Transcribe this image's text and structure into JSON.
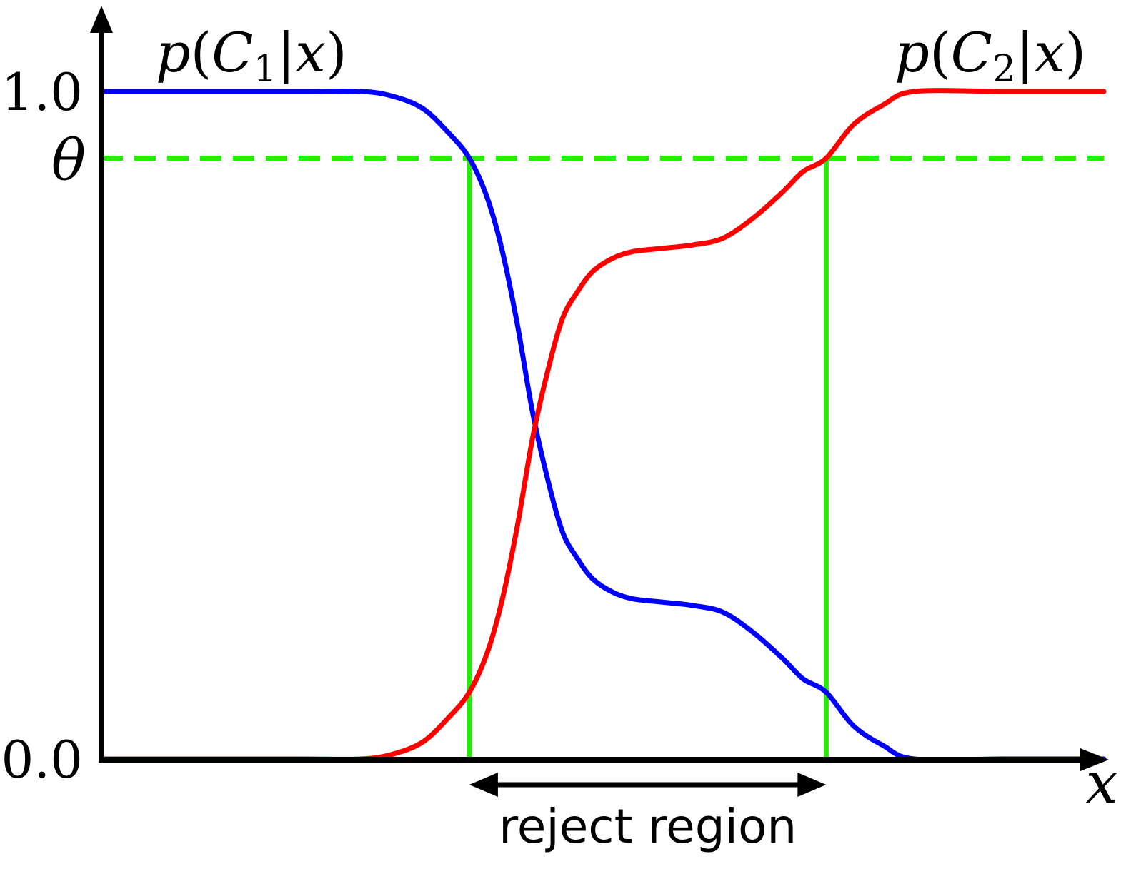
{
  "chart_data": {
    "type": "line",
    "title": "",
    "xlabel": "x",
    "ylabel": "",
    "xlim": [
      0,
      1
    ],
    "ylim": [
      0,
      1
    ],
    "yticks": [
      {
        "value": 1.0,
        "label": "1.0"
      },
      {
        "value": 0.0,
        "label": "0.0"
      }
    ],
    "threshold": {
      "value": 0.9,
      "label": "θ",
      "color": "#22ee00",
      "style": "dashed"
    },
    "reject_region": {
      "x_start": 0.367,
      "x_end": 0.723,
      "label": "reject region",
      "color": "#22ee00"
    },
    "grid": false,
    "series": [
      {
        "name": "p(C₁|x)",
        "label_parts": {
          "prefix": "p(",
          "var": "C",
          "sub": "1",
          "suffix": "|x)"
        },
        "color": "#0000ff",
        "x": [
          0.0,
          0.1,
          0.2,
          0.259,
          0.29,
          0.32,
          0.345,
          0.367,
          0.385,
          0.4,
          0.415,
          0.43,
          0.445,
          0.46,
          0.475,
          0.49,
          0.51,
          0.53,
          0.56,
          0.59,
          0.62,
          0.65,
          0.68,
          0.7,
          0.723,
          0.75,
          0.78,
          0.811,
          0.9,
          1.0
        ],
        "y": [
          1.0,
          1.0,
          1.0,
          1.0,
          0.993,
          0.975,
          0.94,
          0.9,
          0.84,
          0.76,
          0.65,
          0.52,
          0.42,
          0.34,
          0.3,
          0.27,
          0.25,
          0.24,
          0.235,
          0.23,
          0.22,
          0.19,
          0.15,
          0.12,
          0.1,
          0.05,
          0.02,
          0.0,
          0.0,
          0.0
        ]
      },
      {
        "name": "p(C₂|x)",
        "label_parts": {
          "prefix": "p(",
          "var": "C",
          "sub": "2",
          "suffix": "|x)"
        },
        "color": "#ff0000",
        "x": [
          0.0,
          0.1,
          0.2,
          0.259,
          0.29,
          0.32,
          0.345,
          0.367,
          0.385,
          0.4,
          0.415,
          0.43,
          0.445,
          0.46,
          0.475,
          0.49,
          0.51,
          0.53,
          0.56,
          0.59,
          0.62,
          0.65,
          0.68,
          0.7,
          0.723,
          0.75,
          0.78,
          0.811,
          0.9,
          1.0
        ],
        "y": [
          0.0,
          0.0,
          0.0,
          0.0,
          0.007,
          0.025,
          0.06,
          0.1,
          0.16,
          0.24,
          0.35,
          0.48,
          0.58,
          0.66,
          0.7,
          0.73,
          0.75,
          0.76,
          0.765,
          0.77,
          0.78,
          0.81,
          0.85,
          0.88,
          0.9,
          0.95,
          0.98,
          1.0,
          1.0,
          1.0
        ]
      }
    ]
  }
}
